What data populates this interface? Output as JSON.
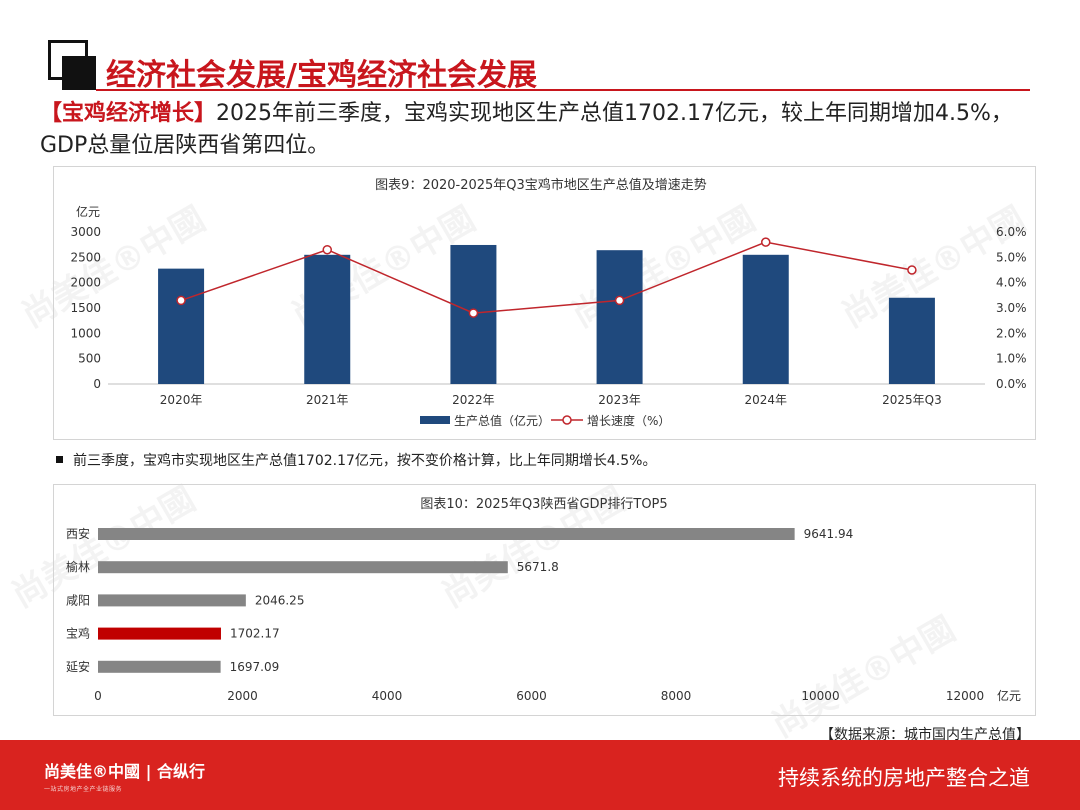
{
  "header": {
    "title": "经济社会发展/宝鸡经济社会发展"
  },
  "intro": {
    "highlight": "【宝鸡经济增长】",
    "text": "2025年前三季度，宝鸡实现地区生产总值1702.17亿元，较上年同期增加4.5%，GDP总量位居陕西省第四位。"
  },
  "chart1": {
    "chart_data": {
      "type": "bar",
      "title": "图表9：2020-2025年Q3宝鸡市地区生产总值及增速走势",
      "ylabel": "亿元",
      "categories": [
        "2020年",
        "2021年",
        "2022年",
        "2023年",
        "2024年",
        "2025年Q3"
      ],
      "series": [
        {
          "name": "生产总值（亿元）",
          "type": "bar",
          "axis": "left",
          "values": [
            2277,
            2550,
            2744,
            2641,
            2550,
            1702.17
          ]
        },
        {
          "name": "增长速度（%）",
          "type": "line",
          "axis": "right",
          "values": [
            3.3,
            5.3,
            2.8,
            3.3,
            5.6,
            4.5
          ]
        }
      ],
      "ylim": [
        0,
        3000
      ],
      "y_ticks": [
        "0",
        "500",
        "1000",
        "1500",
        "2000",
        "2500",
        "3000"
      ],
      "y2lim": [
        0,
        6
      ],
      "y2_ticks": [
        "0.0%",
        "1.0%",
        "2.0%",
        "3.0%",
        "4.0%",
        "5.0%",
        "6.0%"
      ],
      "legend_position": "bottom",
      "grid": false
    }
  },
  "bullet": {
    "text": "前三季度，宝鸡市实现地区生产总值1702.17亿元，按不变价格计算，比上年同期增长4.5%。"
  },
  "chart2": {
    "chart_data": {
      "type": "bar",
      "orientation": "horizontal",
      "title": "图表10：2025年Q3陕西省GDP排行TOP5",
      "categories": [
        "西安",
        "榆林",
        "咸阳",
        "宝鸡",
        "延安"
      ],
      "values": [
        9641.94,
        5671.8,
        2046.25,
        1702.17,
        1697.09
      ],
      "value_labels": [
        "9641.94",
        "5671.8",
        "2046.25",
        "1702.17",
        "1697.09"
      ],
      "highlight_category": "宝鸡",
      "xlim": [
        0,
        12000
      ],
      "x_ticks": [
        "0",
        "2000",
        "4000",
        "6000",
        "8000",
        "10000",
        "12000"
      ],
      "xlabel": "亿元",
      "grid": false
    }
  },
  "source": {
    "text": "【数据来源：城市国内生产总值】"
  },
  "footer": {
    "brand": "尚美佳®中國 | 合纵行",
    "brand_sub": "一站式房地产全产业链服务",
    "slogan": "持续系统的房地产整合之道"
  },
  "colors": {
    "accent_red": "#c8161d",
    "footer_red": "#d9231f",
    "bar_blue": "#1f497d",
    "bar_gray": "#858585",
    "bar_highlight": "#c00000",
    "line_red": "#c0262c"
  }
}
